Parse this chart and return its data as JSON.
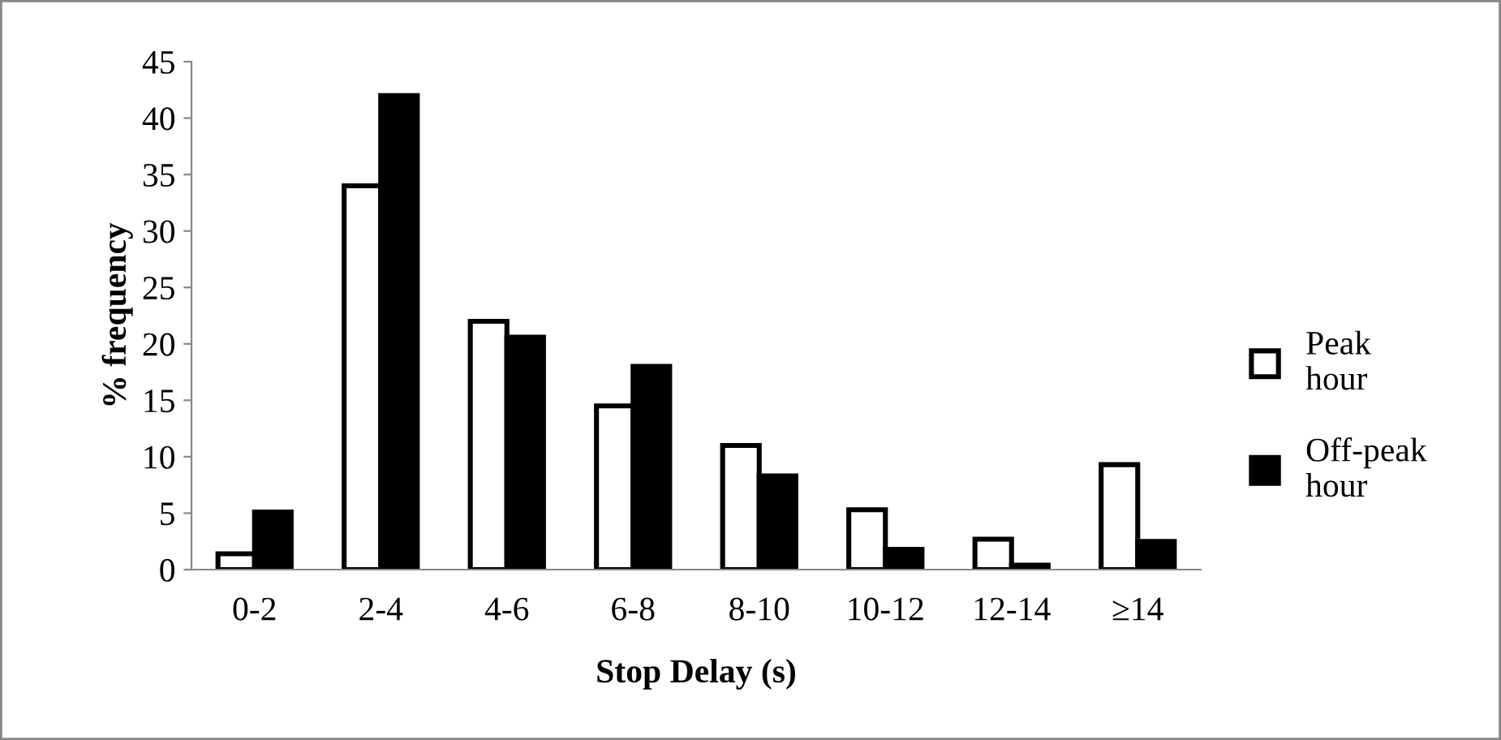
{
  "chart_data": {
    "type": "bar",
    "xlabel": "Stop Delay (s)",
    "ylabel": "% frequency",
    "categories": [
      "0-2",
      "2-4",
      "4-6",
      "6-8",
      "8-10",
      "10-12",
      "12-14",
      "≥14"
    ],
    "series": [
      {
        "name": "Peak\nhour",
        "color": "#ffffff",
        "values": [
          1.4,
          34,
          22,
          14.5,
          11,
          5.3,
          2.7,
          9.3
        ]
      },
      {
        "name": "Off-peak\nhour",
        "color": "#000000",
        "values": [
          5.1,
          42,
          20.6,
          18,
          8.3,
          1.8,
          0.4,
          2.5
        ]
      }
    ],
    "ylim": [
      0,
      45
    ],
    "yticks": [
      0,
      5,
      10,
      15,
      20,
      25,
      30,
      35,
      40,
      45
    ],
    "grid": false,
    "legend": "right"
  }
}
